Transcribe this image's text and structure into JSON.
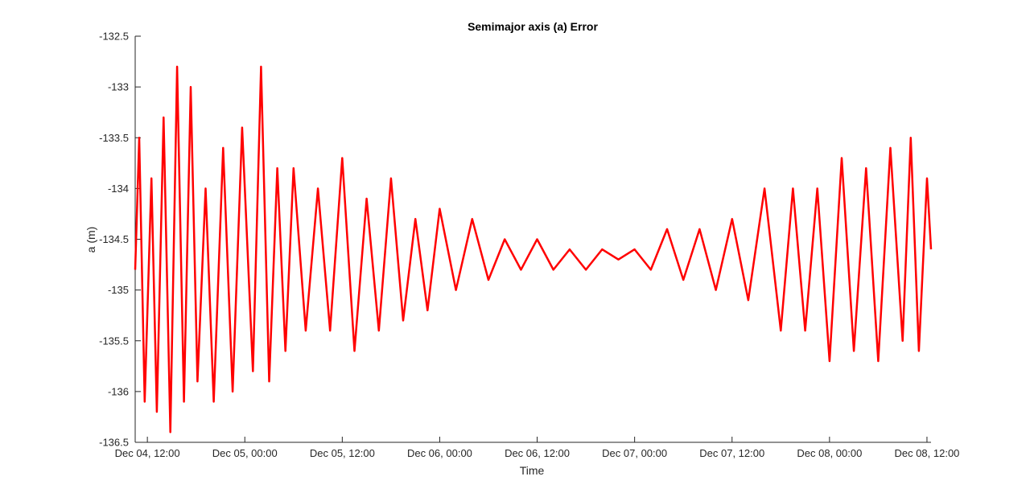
{
  "chart_data": {
    "type": "line",
    "title": "Semimajor axis (a) Error",
    "xlabel": "Time",
    "ylabel": "a (m)",
    "ylim": [
      -136.5,
      -132.5
    ],
    "xlim": [
      "2016-12-04T10:30",
      "2016-12-08T12:30"
    ],
    "y_ticks": [
      -132.5,
      -133,
      -133.5,
      -134,
      -134.5,
      -135,
      -135.5,
      -136,
      -136.5
    ],
    "y_tick_labels": [
      "-132.5",
      "-133",
      "-133.5",
      "-134",
      "-134.5",
      "-135",
      "-135.5",
      "-136",
      "-136.5"
    ],
    "x_ticks": [
      "2016-12-04T12:00",
      "2016-12-05T00:00",
      "2016-12-05T12:00",
      "2016-12-06T00:00",
      "2016-12-06T12:00",
      "2016-12-07T00:00",
      "2016-12-07T12:00",
      "2016-12-08T00:00",
      "2016-12-08T12:00"
    ],
    "x_tick_labels": [
      "Dec 04, 12:00",
      "Dec 05, 00:00",
      "Dec 05, 12:00",
      "Dec 06, 00:00",
      "Dec 06, 12:00",
      "Dec 07, 00:00",
      "Dec 07, 12:00",
      "Dec 08, 00:00",
      "Dec 08, 12:00"
    ],
    "grid": false,
    "legend": "none",
    "series": [
      {
        "color": "#ff0000",
        "x": [
          "2016-12-04T10:30",
          "2016-12-04T11:00",
          "2016-12-04T11:40",
          "2016-12-04T12:30",
          "2016-12-04T13:10",
          "2016-12-04T14:00",
          "2016-12-04T14:50",
          "2016-12-04T15:40",
          "2016-12-04T16:30",
          "2016-12-04T17:20",
          "2016-12-04T18:10",
          "2016-12-04T19:10",
          "2016-12-04T20:10",
          "2016-12-04T21:20",
          "2016-12-04T22:30",
          "2016-12-04T23:40",
          "2016-12-05T01:00",
          "2016-12-05T02:00",
          "2016-12-05T03:00",
          "2016-12-05T04:00",
          "2016-12-05T05:00",
          "2016-12-05T06:00",
          "2016-12-05T07:30",
          "2016-12-05T09:00",
          "2016-12-05T10:30",
          "2016-12-05T12:00",
          "2016-12-05T13:30",
          "2016-12-05T15:00",
          "2016-12-05T16:30",
          "2016-12-05T18:00",
          "2016-12-05T19:30",
          "2016-12-05T21:00",
          "2016-12-05T22:30",
          "2016-12-06T00:00",
          "2016-12-06T02:00",
          "2016-12-06T04:00",
          "2016-12-06T06:00",
          "2016-12-06T08:00",
          "2016-12-06T10:00",
          "2016-12-06T12:00",
          "2016-12-06T14:00",
          "2016-12-06T16:00",
          "2016-12-06T18:00",
          "2016-12-06T20:00",
          "2016-12-06T22:00",
          "2016-12-07T00:00",
          "2016-12-07T02:00",
          "2016-12-07T04:00",
          "2016-12-07T06:00",
          "2016-12-07T08:00",
          "2016-12-07T10:00",
          "2016-12-07T12:00",
          "2016-12-07T14:00",
          "2016-12-07T16:00",
          "2016-12-07T18:00",
          "2016-12-07T19:30",
          "2016-12-07T21:00",
          "2016-12-07T22:30",
          "2016-12-08T00:00",
          "2016-12-08T01:30",
          "2016-12-08T03:00",
          "2016-12-08T04:30",
          "2016-12-08T06:00",
          "2016-12-08T07:30",
          "2016-12-08T09:00",
          "2016-12-08T10:00",
          "2016-12-08T11:00",
          "2016-12-08T12:00",
          "2016-12-08T12:30"
        ],
        "y": [
          -134.8,
          -133.5,
          -136.1,
          -133.9,
          -136.2,
          -133.3,
          -136.4,
          -132.8,
          -136.1,
          -133.0,
          -135.9,
          -134.0,
          -136.1,
          -133.6,
          -136.0,
          -133.4,
          -135.8,
          -132.8,
          -135.9,
          -133.8,
          -135.6,
          -133.8,
          -135.4,
          -134.0,
          -135.4,
          -133.7,
          -135.6,
          -134.1,
          -135.4,
          -133.9,
          -135.3,
          -134.3,
          -135.2,
          -134.2,
          -135.0,
          -134.3,
          -134.9,
          -134.5,
          -134.8,
          -134.5,
          -134.8,
          -134.6,
          -134.8,
          -134.6,
          -134.7,
          -134.6,
          -134.8,
          -134.4,
          -134.9,
          -134.4,
          -135.0,
          -134.3,
          -135.1,
          -134.0,
          -135.4,
          -134.0,
          -135.4,
          -134.0,
          -135.7,
          -133.7,
          -135.6,
          -133.8,
          -135.7,
          -133.6,
          -135.5,
          -133.5,
          -135.6,
          -133.9,
          -134.6
        ]
      }
    ]
  }
}
